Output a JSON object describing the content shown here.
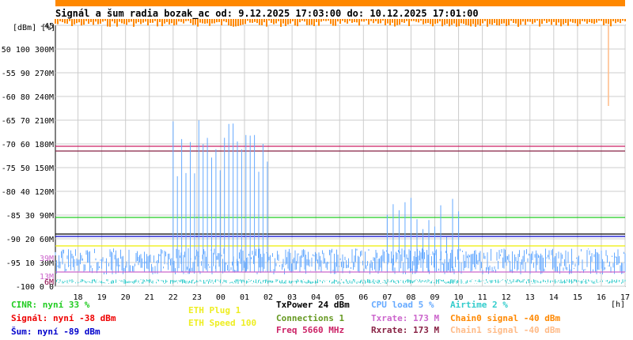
{
  "chart_data": {
    "type": "line",
    "title": "Signál a šum radia bozak_ac od: 9.12.2025 17:03:00 do: 10.12.2025 17:01:00",
    "y_unit_label": "[dBm] [%]",
    "x_unit_label": "[h]",
    "x_tick_labels": [
      "18",
      "19",
      "20",
      "21",
      "22",
      "23",
      "00",
      "01",
      "02",
      "03",
      "04",
      "05",
      "06",
      "07",
      "08",
      "09",
      "10",
      "11",
      "12",
      "13",
      "14",
      "15",
      "16",
      "17"
    ],
    "y_ticks": [
      {
        "dbm": -45,
        "pct": "",
        "rate": ""
      },
      {
        "dbm": -50,
        "pct": "100",
        "rate": "300M"
      },
      {
        "dbm": -55,
        "pct": "90",
        "rate": "270M"
      },
      {
        "dbm": -60,
        "pct": "80",
        "rate": "240M"
      },
      {
        "dbm": -65,
        "pct": "70",
        "rate": "210M"
      },
      {
        "dbm": -70,
        "pct": "60",
        "rate": "180M"
      },
      {
        "dbm": -75,
        "pct": "50",
        "rate": "150M"
      },
      {
        "dbm": -80,
        "pct": "40",
        "rate": "120M"
      },
      {
        "dbm": -85,
        "pct": "30",
        "rate": "90M"
      },
      {
        "dbm": -90,
        "pct": "20",
        "rate": "60M"
      },
      {
        "dbm": -95,
        "pct": "10",
        "rate": "30M"
      },
      {
        "dbm": -100,
        "pct": "0",
        "rate": "0"
      }
    ],
    "inline_markers": [
      {
        "text": "39M",
        "dbm": -94,
        "color": "#cc66cc"
      },
      {
        "text": "13M",
        "dbm": -97.8,
        "color": "#cc66cc"
      },
      {
        "text": "6M",
        "dbm": -99,
        "color": "#880044"
      }
    ],
    "ylim": [
      -100,
      -45
    ],
    "xlim": [
      17.05,
      41.0
    ],
    "grid": true,
    "series": [
      {
        "name": "Chain0 signal",
        "color": "#ff8800",
        "kind": "top-band",
        "values": [
          -45,
          -46
        ]
      },
      {
        "name": "Chain1 signal",
        "color": "#ffbb88",
        "kind": "spike",
        "x": [
          40.3,
          41.0
        ],
        "values": [
          -45,
          -62
        ]
      },
      {
        "name": "Rxrate",
        "color": "#882244",
        "kind": "flat",
        "values": [
          -71.5,
          -71.5
        ]
      },
      {
        "name": "Freq",
        "color": "#cc2266",
        "kind": "flat",
        "values": [
          -70.5,
          -70.5
        ]
      },
      {
        "name": "ETH Speed",
        "color": "#eeee00",
        "kind": "flat",
        "values": [
          -91.5,
          -91.5
        ]
      },
      {
        "name": "CINR",
        "color": "#22cc22",
        "kind": "flat",
        "values": [
          -85.5,
          -85.5
        ]
      },
      {
        "name": "Šum",
        "color": "#0000cc",
        "kind": "flat",
        "values": [
          -89.5,
          -89.5
        ]
      },
      {
        "name": "Signál",
        "color": "#000000",
        "kind": "flat",
        "values": [
          -89.0,
          -89.0
        ]
      },
      {
        "name": "CPU load",
        "color": "#66aaff",
        "kind": "noise",
        "values": [
          -97.5,
          -92
        ]
      },
      {
        "name": "Airtime",
        "color": "#33cccc",
        "kind": "noise",
        "values": [
          -99.5,
          -98.5
        ]
      },
      {
        "name": "Txrate",
        "color": "#cc66cc",
        "kind": "flat",
        "values": [
          -97.0,
          -97.0
        ]
      }
    ]
  },
  "legend": [
    {
      "text": "CINR: nyní 33 %",
      "color": "#22cc22"
    },
    {
      "text": "Signál: nyní -38 dBm",
      "color": "#ee0000"
    },
    {
      "text": "Šum: nyní -89 dBm",
      "color": "#0000cc"
    },
    {
      "text": "ETH Plug 1",
      "color": "#eeee22"
    },
    {
      "text": "ETH Speed 100",
      "color": "#eeee22"
    },
    {
      "text": "TxPower 24 dBm",
      "color": "#000000"
    },
    {
      "text": "Connections 1",
      "color": "#669922"
    },
    {
      "text": "Freq 5660 MHz",
      "color": "#cc2266"
    },
    {
      "text": "CPU load 5 %",
      "color": "#66aaff"
    },
    {
      "text": "Txrate: 173 M",
      "color": "#cc66cc"
    },
    {
      "text": "Rxrate: 173 M",
      "color": "#882244"
    },
    {
      "text": "Airtime 2 %",
      "color": "#33cccc"
    },
    {
      "text": "Chain0 signal -40 dBm",
      "color": "#ff8800"
    },
    {
      "text": "Chain1 signal -40 dBm",
      "color": "#ffbb88"
    }
  ]
}
